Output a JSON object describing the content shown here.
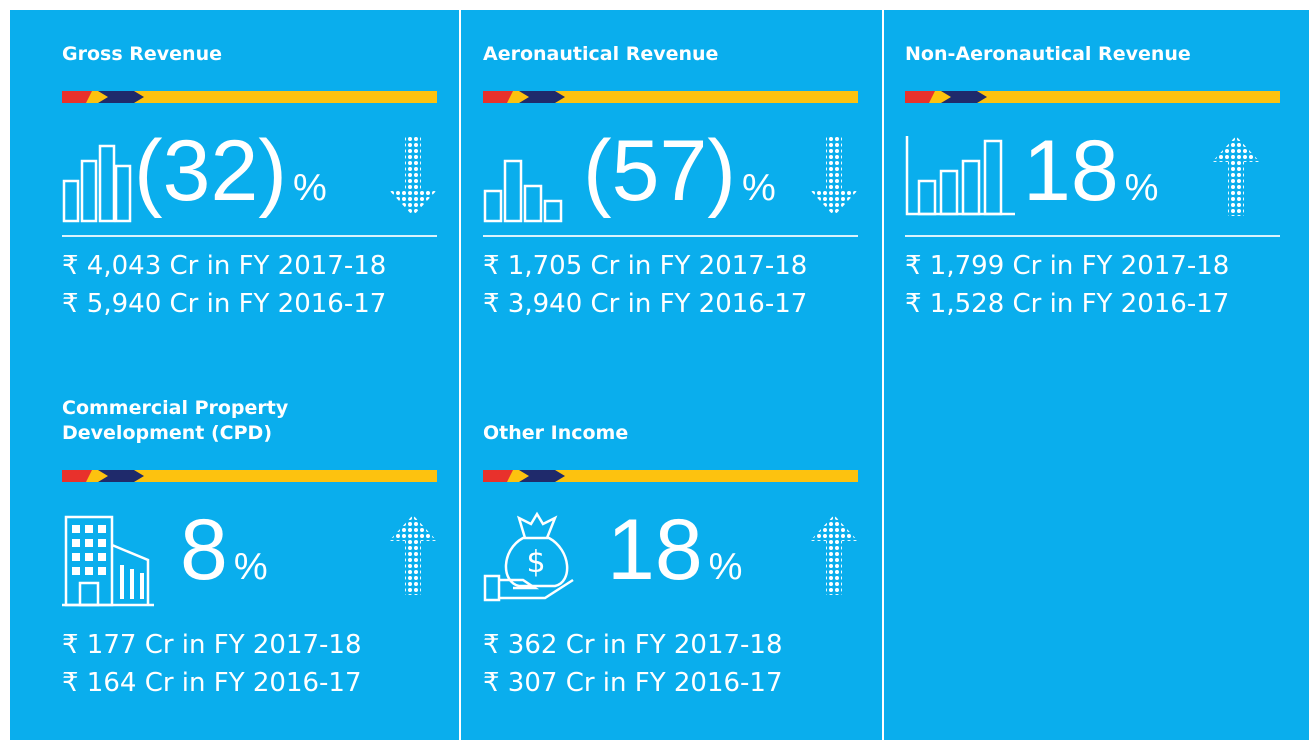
{
  "cards": [
    {
      "title": "Gross Revenue",
      "change": "(32)",
      "unit": "%",
      "lines": [
        "₹ 4,043 Cr in FY 2017-18",
        "₹ 5,940 Cr in FY 2016-17"
      ]
    },
    {
      "title": "Aeronautical Revenue",
      "change": "(57)",
      "unit": "%",
      "lines": [
        "₹ 1,705 Cr in FY 2017-18",
        "₹ 3,940 Cr in FY 2016-17"
      ]
    },
    {
      "title": "Non-Aeronautical Revenue",
      "change": "18",
      "unit": "%",
      "lines": [
        "₹ 1,799 Cr in FY 2017-18",
        "₹ 1,528 Cr in FY 2016-17"
      ]
    },
    {
      "title": "Commercial Property Development (CPD)",
      "change": "8",
      "unit": "%",
      "lines": [
        "₹ 177 Cr in FY 2017-18",
        "₹ 164 Cr in FY 2016-17"
      ]
    },
    {
      "title": "Other Income",
      "change": "18",
      "unit": "%",
      "lines": [
        "₹ 362 Cr in FY 2017-18",
        "₹ 307 Cr in FY 2016-17"
      ]
    }
  ]
}
